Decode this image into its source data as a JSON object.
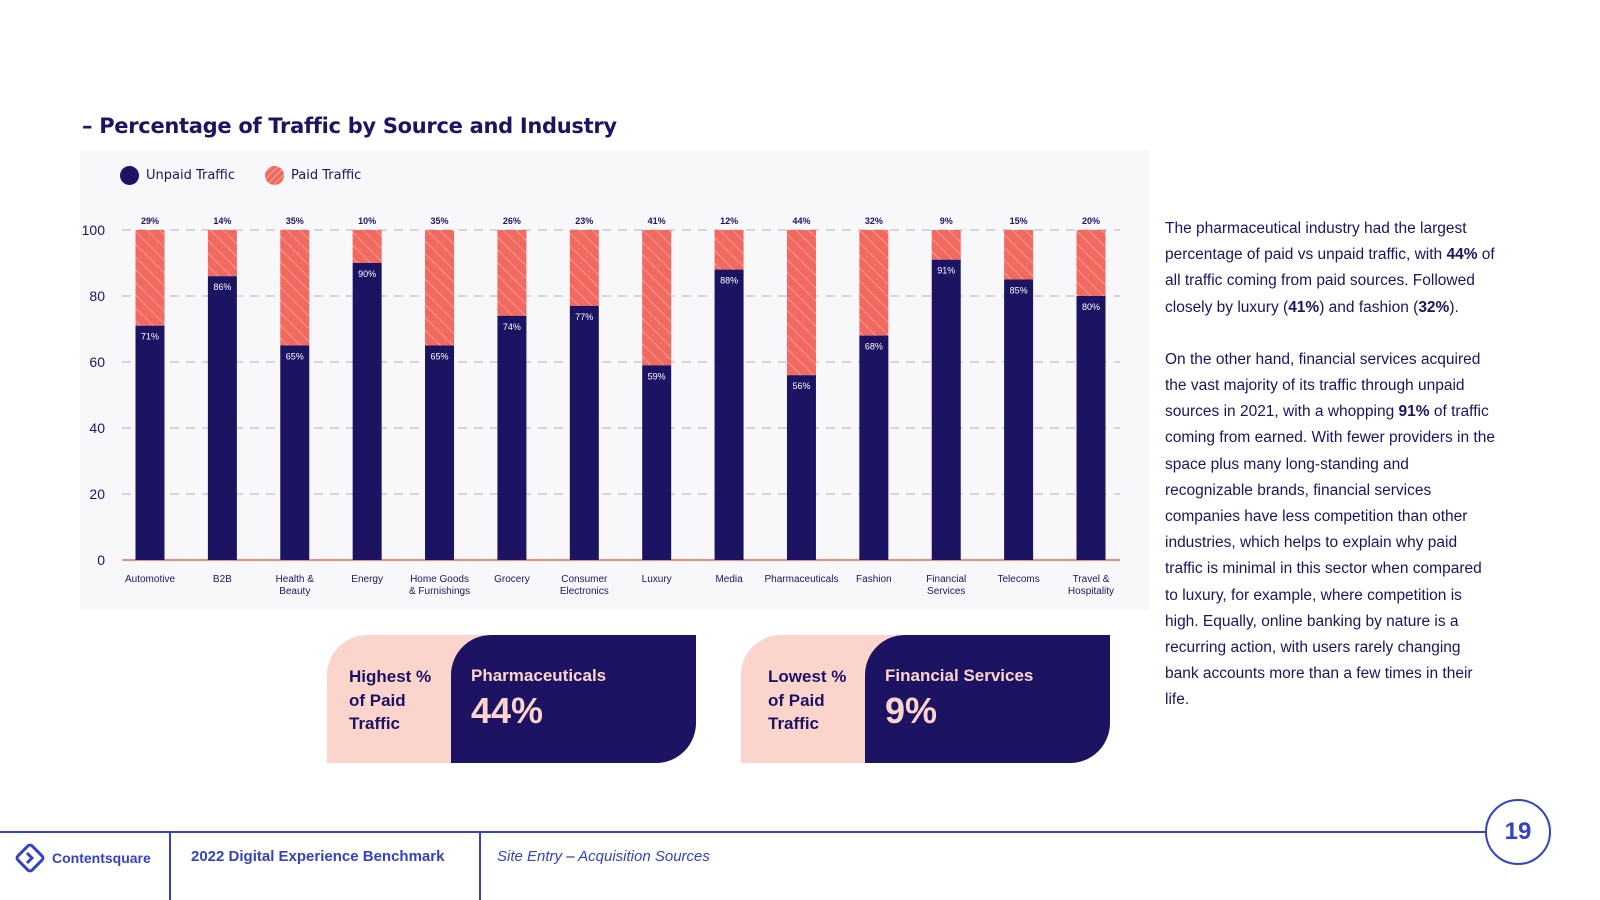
{
  "page_title": "– Percentage of Traffic by Source and Industry",
  "colors": {
    "unpaid": "#1c1463",
    "paid": "#f2695f",
    "accent": "#3340c9",
    "peach": "#fbd5cc"
  },
  "chart_data": {
    "type": "bar",
    "stacked": true,
    "categories": [
      "Automotive",
      "B2B",
      "Health & Beauty",
      "Energy",
      "Home Goods & Furnishings",
      "Grocery",
      "Consumer Electronics",
      "Luxury",
      "Media",
      "Pharmaceuticals",
      "Fashion",
      "Financial Services",
      "Telecoms",
      "Travel & Hospitality"
    ],
    "category_lines": [
      [
        "Automotive"
      ],
      [
        "B2B"
      ],
      [
        "Health &",
        "Beauty"
      ],
      [
        "Energy"
      ],
      [
        "Home Goods",
        "& Furnishings"
      ],
      [
        "Grocery"
      ],
      [
        "Consumer",
        "Electronics"
      ],
      [
        "Luxury"
      ],
      [
        "Media"
      ],
      [
        "Pharmaceuticals"
      ],
      [
        "Fashion"
      ],
      [
        "Financial",
        "Services"
      ],
      [
        "Telecoms"
      ],
      [
        "Travel &",
        "Hospitality"
      ]
    ],
    "series": [
      {
        "name": "Unpaid Traffic",
        "values": [
          71,
          86,
          65,
          90,
          65,
          74,
          77,
          59,
          88,
          56,
          68,
          91,
          85,
          80
        ]
      },
      {
        "name": "Paid Traffic",
        "values": [
          29,
          14,
          35,
          10,
          35,
          26,
          23,
          41,
          12,
          44,
          32,
          9,
          15,
          20
        ]
      }
    ],
    "ylim": [
      0,
      100
    ],
    "yticks": [
      0,
      20,
      40,
      60,
      80,
      100
    ],
    "grid": true,
    "legend_position": "top-left",
    "value_suffix": "%"
  },
  "side_text": {
    "p1": {
      "t1": "The pharmaceutical industry had the largest percentage of paid vs unpaid traffic, with ",
      "b1": "44%",
      "t2": " of all traffic coming from paid sources. Followed closely by luxury (",
      "b2": "41%",
      "t3": ") and fashion (",
      "b3": "32%",
      "t4": ")."
    },
    "p2": {
      "t1": "On the other hand, financial services acquired the vast majority of its traffic through unpaid sources in 2021, with a whopping ",
      "b1": "91%",
      "t2": " of traffic coming from earned. With fewer providers in the space plus many long-standing and recognizable brands, financial services companies have less competition than other industries, which helps to explain why paid traffic is minimal in this sector when compared to luxury, for example, where competition is high. Equally, online banking by nature is a recurring action, with users rarely changing bank accounts more than a few times in their life."
    }
  },
  "highest_card": {
    "label_lines": [
      "Highest %",
      "of Paid",
      "Traffic"
    ],
    "name": "Pharmaceuticals",
    "value": "44%"
  },
  "lowest_card": {
    "label_lines": [
      "Lowest %",
      "of Paid",
      "Traffic"
    ],
    "name": "Financial Services",
    "value": "9%"
  },
  "footer": {
    "logo_text": "Contentsquare",
    "logo_icon": "contentsquare-logo-icon",
    "report": "2022 Digital Experience Benchmark",
    "section_a": "Site Entry",
    "section_sep": " – ",
    "section_b": "Acquisition Sources",
    "page_number": "19"
  }
}
